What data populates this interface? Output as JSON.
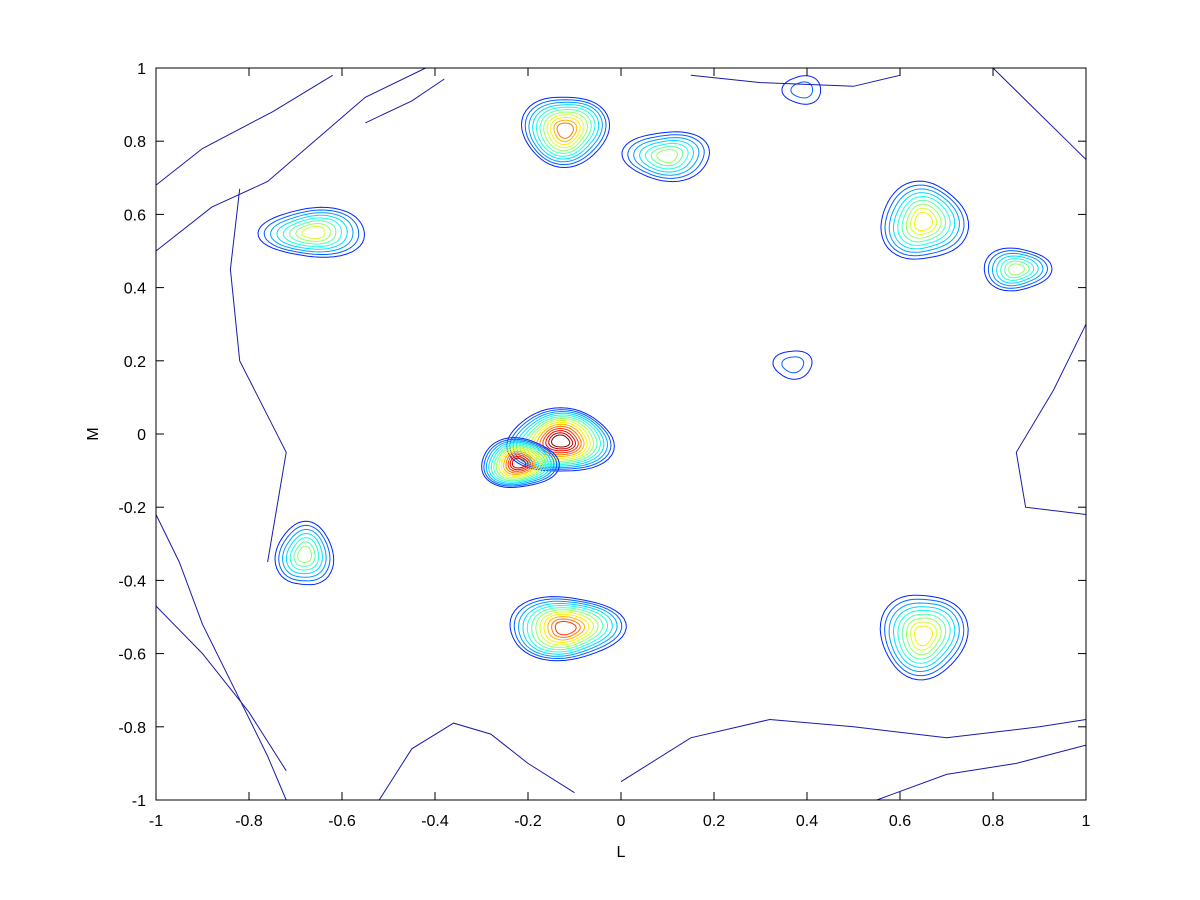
{
  "chart_data": {
    "type": "contour",
    "xlabel": "L",
    "ylabel": "M",
    "xlim": [
      -1,
      1
    ],
    "ylim": [
      -1,
      1
    ],
    "x_ticks": [
      -1,
      -0.8,
      -0.6,
      -0.4,
      -0.2,
      0,
      0.2,
      0.4,
      0.6,
      0.8,
      1
    ],
    "y_ticks": [
      -1,
      -0.8,
      -0.6,
      -0.4,
      -0.2,
      0,
      0.2,
      0.4,
      0.6,
      0.8,
      1
    ],
    "x_tick_labels": [
      "-1",
      "-0.8",
      "-0.6",
      "-0.4",
      "-0.2",
      "0",
      "0.2",
      "0.4",
      "0.6",
      "0.8",
      "1"
    ],
    "y_tick_labels": [
      "-1",
      "-0.8",
      "-0.6",
      "-0.4",
      "-0.2",
      "0",
      "0.2",
      "0.4",
      "0.6",
      "0.8",
      "1"
    ],
    "grid": false,
    "colormap": "jet",
    "peaks": [
      {
        "x": -0.13,
        "y": -0.02,
        "rx": 0.11,
        "ry": 0.09,
        "levels": 15
      },
      {
        "x": -0.22,
        "y": -0.08,
        "rx": 0.08,
        "ry": 0.07,
        "levels": 14
      },
      {
        "x": -0.12,
        "y": -0.53,
        "rx": 0.12,
        "ry": 0.09,
        "levels": 12
      },
      {
        "x": -0.12,
        "y": 0.83,
        "rx": 0.09,
        "ry": 0.1,
        "levels": 11
      },
      {
        "x": 0.1,
        "y": 0.76,
        "rx": 0.09,
        "ry": 0.07,
        "levels": 7
      },
      {
        "x": -0.66,
        "y": 0.55,
        "rx": 0.11,
        "ry": 0.07,
        "levels": 8
      },
      {
        "x": -0.68,
        "y": -0.33,
        "rx": 0.06,
        "ry": 0.09,
        "levels": 7
      },
      {
        "x": 0.65,
        "y": 0.58,
        "rx": 0.09,
        "ry": 0.11,
        "levels": 9
      },
      {
        "x": 0.85,
        "y": 0.45,
        "rx": 0.07,
        "ry": 0.06,
        "levels": 7
      },
      {
        "x": 0.65,
        "y": -0.55,
        "rx": 0.09,
        "ry": 0.12,
        "levels": 9
      },
      {
        "x": 0.37,
        "y": 0.19,
        "rx": 0.04,
        "ry": 0.04,
        "levels": 2
      },
      {
        "x": 0.39,
        "y": 0.94,
        "rx": 0.04,
        "ry": 0.04,
        "levels": 2
      }
    ],
    "colors": {
      "low": "#0000aa",
      "mid_low": "#00aaff",
      "mid": "#00ffcc",
      "mid_high": "#ffff00",
      "high": "#aa0000"
    }
  }
}
